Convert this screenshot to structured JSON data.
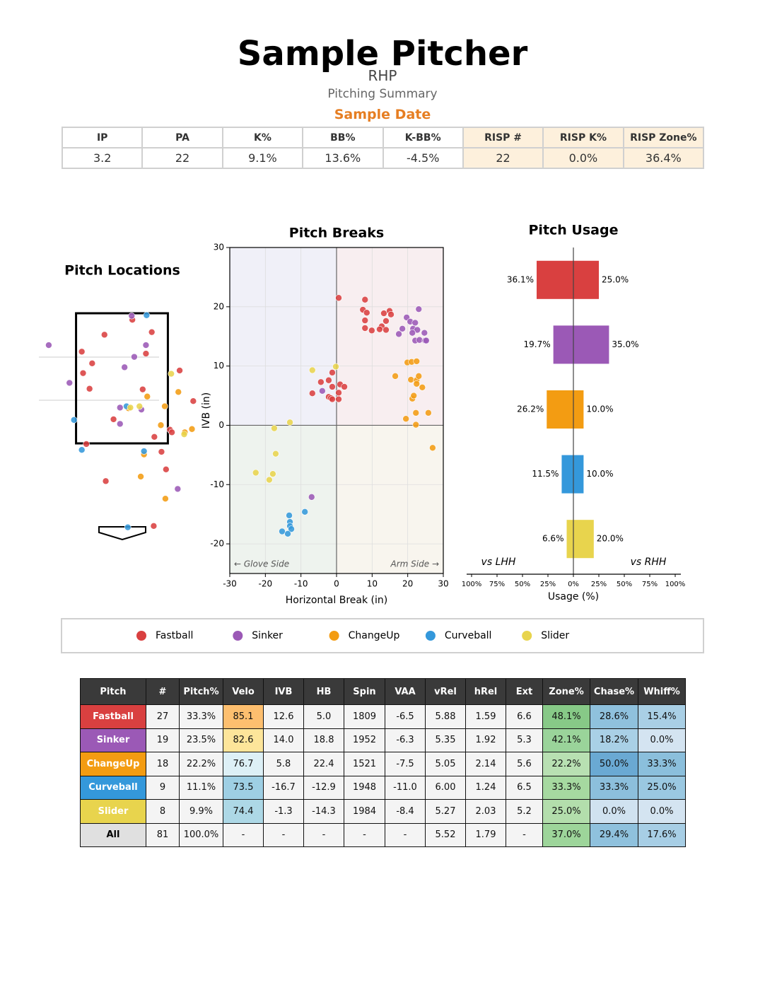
{
  "header": {
    "title": "Sample Pitcher",
    "hand": "RHP",
    "subtitle": "Pitching Summary",
    "date": "Sample Date"
  },
  "summary": {
    "columns": [
      "IP",
      "PA",
      "K%",
      "BB%",
      "K-BB%",
      "RISP #",
      "RISP K%",
      "RISP Zone%"
    ],
    "rows": [
      [
        "3.2",
        "22",
        "9.1%",
        "13.6%",
        "-4.5%",
        "22",
        "0.0%",
        "36.4%"
      ]
    ]
  },
  "chart_data": [
    {
      "type": "scatter",
      "title": "Pitch Locations",
      "xlim": [
        -1.5,
        1.5
      ],
      "ylim": [
        -0.5,
        4.0
      ],
      "series": [
        {
          "color": "#d94040",
          "x": [
            -0.27,
            0.16,
            0.46,
            -0.62,
            0.37,
            -0.46,
            -0.6,
            0.89,
            -0.5,
            0.32,
            1.1,
            -0.13,
            -0.55,
            0.5,
            0.74,
            0.77,
            0.61,
            -0.25,
            0.49,
            0.68
          ],
          "values": [
            3.17,
            3.4,
            3.21,
            2.91,
            2.88,
            2.73,
            2.58,
            2.62,
            2.34,
            2.33,
            2.15,
            1.87,
            1.49,
            1.6,
            1.71,
            1.67,
            1.37,
            0.92,
            0.23,
            1.1
          ]
        },
        {
          "color": "#9b59b6",
          "x": [
            -1.13,
            0.15,
            0.37,
            0.19,
            0.04,
            -0.81,
            -0.03,
            0.3,
            -0.03,
            0.86
          ],
          "values": [
            3.01,
            3.46,
            3.01,
            2.83,
            2.67,
            2.43,
            2.05,
            2.02,
            1.8,
            0.8
          ]
        },
        {
          "color": "#f39c12",
          "x": [
            0.87,
            0.66,
            0.39,
            0.1,
            0.6,
            1.08,
            0.97,
            0.34,
            0.29,
            0.67
          ],
          "values": [
            2.29,
            2.07,
            2.22,
            2.04,
            1.78,
            1.72,
            1.67,
            1.33,
            0.99,
            0.65
          ]
        },
        {
          "color": "#3498db",
          "x": [
            0.38,
            -0.74,
            0.07,
            -0.62,
            0.34,
            0.09
          ],
          "values": [
            3.47,
            1.86,
            2.07,
            1.4,
            1.38,
            0.21
          ]
        },
        {
          "color": "#e8d44d",
          "x": [
            0.76,
            0.27,
            0.13,
            0.96
          ],
          "values": [
            2.57,
            2.07,
            2.05,
            1.64
          ]
        }
      ]
    },
    {
      "type": "scatter",
      "title": "Pitch Breaks",
      "x_label": "Horizontal Break (in)",
      "y_label": "IVB (in)",
      "annotations": [
        "← Glove Side",
        "Arm Side →"
      ],
      "grid": true,
      "xlim": [
        -30,
        30
      ],
      "ylim": [
        -25,
        30
      ],
      "xticks": [
        -30,
        -20,
        -10,
        0,
        10,
        20,
        30
      ],
      "yticks": [
        -20,
        -10,
        0,
        10,
        20,
        30
      ],
      "quadrant_colors": [
        "#f0f0f8",
        "#f8eef0",
        "#eef3ee",
        "#f8f5ee"
      ],
      "series": [
        {
          "name": "Fastball",
          "color": "#d94040",
          "x": [
            0.6,
            8.0,
            7.4,
            8.5,
            13.3,
            14.9,
            15.3,
            8.0,
            13.9,
            8.0,
            12.7,
            12.1,
            13.9,
            9.9,
            -1.2,
            -4.4,
            -2.2,
            1.0,
            2.2,
            -1.2,
            -6.8,
            0.6,
            -2.2,
            -1.6,
            -1.2,
            0.6
          ],
          "values": [
            21.5,
            21.2,
            19.5,
            19.0,
            18.9,
            19.3,
            18.7,
            17.7,
            17.6,
            16.4,
            16.7,
            16.2,
            16.1,
            16.0,
            8.9,
            7.3,
            7.6,
            6.9,
            6.5,
            6.5,
            5.4,
            5.5,
            4.8,
            4.6,
            4.4,
            4.4
          ]
        },
        {
          "name": "Sinker",
          "color": "#9b59b6",
          "x": [
            23.1,
            19.7,
            20.7,
            22.1,
            18.5,
            21.5,
            22.7,
            24.7,
            17.5,
            21.3,
            22.1,
            23.3,
            24.9,
            25.2,
            -4.0,
            -7.0
          ],
          "values": [
            19.6,
            18.2,
            17.5,
            17.3,
            16.3,
            16.3,
            16.1,
            15.6,
            15.4,
            15.6,
            14.3,
            14.4,
            14.3,
            14.3,
            5.8,
            -12.1
          ]
        },
        {
          "name": "ChangeUp",
          "color": "#f39c12",
          "x": [
            16.5,
            19.9,
            21.1,
            22.5,
            20.9,
            22.5,
            22.5,
            23.1,
            24.1,
            21.3,
            21.7,
            22.3,
            25.8,
            19.5,
            22.3,
            27.0
          ],
          "values": [
            8.3,
            10.6,
            10.7,
            10.8,
            7.7,
            7.6,
            7.0,
            8.3,
            6.4,
            4.5,
            5.0,
            2.1,
            2.1,
            1.1,
            0.1,
            -3.8
          ]
        },
        {
          "name": "Curveball",
          "color": "#3498db",
          "x": [
            -8.9,
            -13.3,
            -13.1,
            -13.1,
            -12.7,
            -15.3,
            -13.7
          ],
          "values": [
            -14.6,
            -15.2,
            -16.3,
            -17.0,
            -17.5,
            -17.9,
            -18.3
          ]
        },
        {
          "name": "Slider",
          "color": "#e8d44d",
          "x": [
            -6.8,
            -0.2,
            -13.1,
            -17.5,
            -17.1,
            -22.7,
            -17.9,
            -18.9
          ],
          "values": [
            9.3,
            9.9,
            0.5,
            -0.5,
            -4.8,
            -8.0,
            -8.2,
            -9.2
          ]
        }
      ]
    },
    {
      "type": "bar",
      "orientation": "horizontal",
      "title": "Pitch Usage",
      "x_label": "Usage (%)",
      "categories": [
        null,
        null,
        null,
        null,
        null
      ],
      "colors": [
        "#d94040",
        "#9b59b6",
        "#f39c12",
        "#3498db",
        "#e8d44d"
      ],
      "xlim": [
        -100,
        100
      ],
      "xticks": [
        {
          "value": -100,
          "label": "100%"
        },
        {
          "value": -75,
          "label": "75%"
        },
        {
          "value": -50,
          "label": "50%"
        },
        {
          "value": -25,
          "label": "25%"
        },
        {
          "value": 0,
          "label": "0%"
        },
        {
          "value": 25,
          "label": "25%"
        },
        {
          "value": 50,
          "label": "50%"
        },
        {
          "value": 75,
          "label": "75%"
        },
        {
          "value": 100,
          "label": "100%"
        }
      ],
      "series": [
        {
          "name": "vs LHH",
          "values": [
            -36.1,
            -19.7,
            -26.2,
            -11.5,
            -6.6
          ],
          "value_labels": [
            "36.1%",
            "19.7%",
            "26.2%",
            "11.5%",
            "6.6%"
          ]
        },
        {
          "name": "vs RHH",
          "values": [
            25.0,
            35.0,
            10.0,
            10.0,
            20.0
          ],
          "value_labels": [
            "25.0%",
            "35.0%",
            "10.0%",
            "10.0%",
            "20.0%"
          ]
        }
      ]
    }
  ],
  "pitch_table": {
    "columns": [
      "Pitch",
      "#",
      "Pitch%",
      "Velo",
      "IVB",
      "HB",
      "Spin",
      "VAA",
      "vRel",
      "hRel",
      "Ext",
      "Zone%",
      "Chase%",
      "Whiff%"
    ],
    "rows": [
      [
        "Fastball",
        "27",
        "33.3%",
        "85.1",
        "12.6",
        "5.0",
        "1809",
        "-6.5",
        "5.88",
        "1.59",
        "6.6",
        "48.1%",
        "28.6%",
        "15.4%"
      ],
      [
        "Sinker",
        "19",
        "23.5%",
        "82.6",
        "14.0",
        "18.8",
        "1952",
        "-6.3",
        "5.35",
        "1.92",
        "5.3",
        "42.1%",
        "18.2%",
        "0.0%"
      ],
      [
        "ChangeUp",
        "18",
        "22.2%",
        "76.7",
        "5.8",
        "22.4",
        "1521",
        "-7.5",
        "5.05",
        "2.14",
        "5.6",
        "22.2%",
        "50.0%",
        "33.3%"
      ],
      [
        "Curveball",
        "9",
        "11.1%",
        "73.5",
        "-16.7",
        "-12.9",
        "1948",
        "-11.0",
        "6.00",
        "1.24",
        "6.5",
        "33.3%",
        "33.3%",
        "25.0%"
      ],
      [
        "Slider",
        "8",
        "9.9%",
        "74.4",
        "-1.3",
        "-14.3",
        "1984",
        "-8.4",
        "5.27",
        "2.03",
        "5.2",
        "25.0%",
        "0.0%",
        "0.0%"
      ],
      [
        "All",
        "81",
        "100.0%",
        "-",
        "-",
        "-",
        "-",
        "-",
        "5.52",
        "1.79",
        "-",
        "37.0%",
        "29.4%",
        "17.6%"
      ]
    ],
    "cell_colors": [
      [
        "#d94040",
        "#f4f4f4",
        "#f4f4f4",
        "#fdbf6f",
        "#f4f4f4",
        "#f4f4f4",
        "#f4f4f4",
        "#f4f4f4",
        "#f4f4f4",
        "#f4f4f4",
        "#f4f4f4",
        "#87c987",
        "#8fc1dd",
        "#a9cfe5"
      ],
      [
        "#9b59b6",
        "#f4f4f4",
        "#f4f4f4",
        "#fde59a",
        "#f4f4f4",
        "#f4f4f4",
        "#f4f4f4",
        "#f4f4f4",
        "#f4f4f4",
        "#f4f4f4",
        "#f4f4f4",
        "#9ad49a",
        "#a9d0e6",
        "#d4e4f1"
      ],
      [
        "#f39c12",
        "#f4f4f4",
        "#f4f4f4",
        "#ddf0f6",
        "#f4f4f4",
        "#f4f4f4",
        "#f4f4f4",
        "#f4f4f4",
        "#f4f4f4",
        "#f4f4f4",
        "#f4f4f4",
        "#b8e0b2",
        "#6aa9d3",
        "#8bbfdc"
      ],
      [
        "#3498db",
        "#f4f4f4",
        "#f4f4f4",
        "#9ecfe4",
        "#f4f4f4",
        "#f4f4f4",
        "#f4f4f4",
        "#f4f4f4",
        "#f4f4f4",
        "#f4f4f4",
        "#f4f4f4",
        "#a6d9a0",
        "#8cbfdc",
        "#9ac8e1"
      ],
      [
        "#e8d44d",
        "#f4f4f4",
        "#f4f4f4",
        "#add8e6",
        "#f4f4f4",
        "#f4f4f4",
        "#f4f4f4",
        "#f4f4f4",
        "#f4f4f4",
        "#f4f4f4",
        "#f4f4f4",
        "#b3deac",
        "#d0e2f0",
        "#d4e4f1"
      ],
      [
        "#e0e0e0",
        "#f4f4f4",
        "#f4f4f4",
        "#f4f4f4",
        "#f4f4f4",
        "#f4f4f4",
        "#f4f4f4",
        "#f4f4f4",
        "#f4f4f4",
        "#f4f4f4",
        "#f4f4f4",
        "#9dd59a",
        "#8fc1dd",
        "#a7cee5"
      ]
    ]
  }
}
